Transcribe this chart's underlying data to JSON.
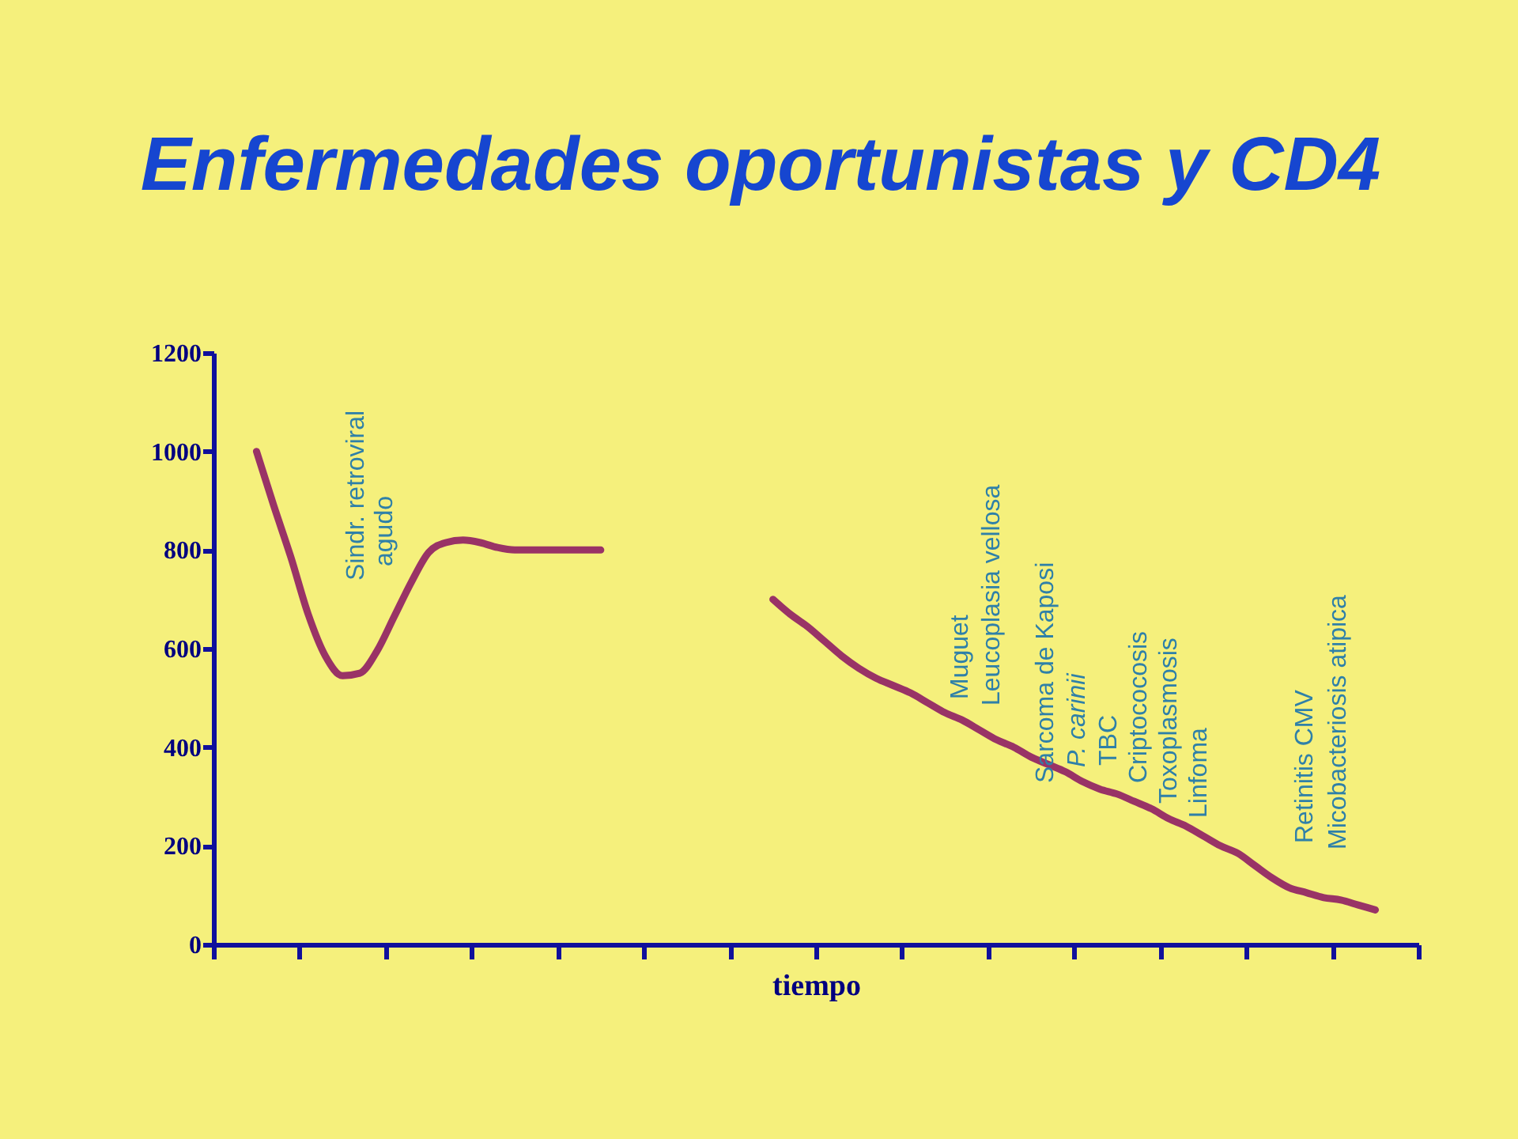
{
  "chart_data": {
    "type": "line",
    "title": "Enfermedades oportunistas y CD4",
    "xlabel": "tiempo",
    "categories": [
      null,
      null,
      null,
      null,
      null,
      null,
      null,
      null,
      null,
      null,
      null,
      null,
      null,
      null,
      null,
      null,
      null,
      null,
      null,
      null,
      null,
      null,
      null,
      null,
      null,
      null,
      null,
      null,
      null,
      null,
      null,
      null,
      null,
      null,
      null,
      null,
      null,
      null,
      null,
      null,
      null,
      null,
      null,
      null,
      null,
      null,
      null,
      null,
      null,
      null,
      null,
      null,
      null,
      null,
      null,
      null,
      null,
      null,
      null,
      null,
      null,
      null,
      null,
      null,
      null,
      null,
      null,
      null,
      null,
      null
    ],
    "ylim": [
      0,
      1200
    ],
    "yticks": [
      0,
      200,
      400,
      600,
      800,
      1000,
      1200
    ],
    "tick_labels": "y",
    "series": [
      {
        "color": "#993366",
        "values": [
          null,
          null,
          1000,
          890,
          785,
          670,
          585,
          545,
          550,
          595,
          665,
          735,
          795,
          815,
          820,
          815,
          805,
          800,
          800,
          800,
          800,
          800,
          800,
          null,
          null,
          null,
          null,
          null,
          null,
          null,
          null,
          null,
          700,
          670,
          645,
          615,
          585,
          560,
          540,
          525,
          510,
          490,
          470,
          455,
          435,
          415,
          400,
          380,
          365,
          350,
          330,
          315,
          305,
          290,
          275,
          255,
          240,
          220,
          200,
          185,
          160,
          135,
          115,
          105,
          95,
          90,
          80,
          70,
          null,
          null
        ]
      }
    ],
    "annotations": [
      "Sindr. retroviral",
      "agudo",
      "Muguet",
      "Leucoplasia vellosa",
      "Sarcoma de Kaposi",
      "P. carinii",
      "TBC",
      "Criptococosis",
      "Toxoplasmosis",
      "Linfoma",
      "Retinitis CMV",
      "Micobacteriosis  atipica"
    ]
  }
}
